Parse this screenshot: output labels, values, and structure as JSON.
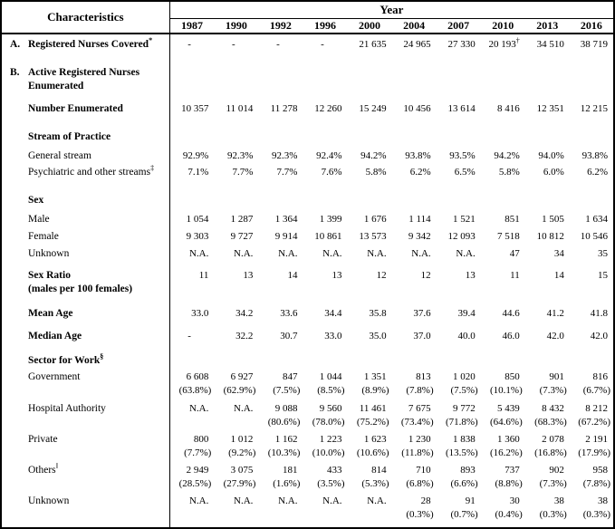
{
  "table": {
    "header": {
      "characteristics": "Characteristics",
      "year": "Year",
      "years": [
        "1987",
        "1990",
        "1992",
        "1996",
        "2000",
        "2004",
        "2007",
        "2010",
        "2013",
        "2016"
      ]
    },
    "na_label": "N.A.",
    "rows": [
      {
        "id": "registered-covered",
        "letter": "A.",
        "label": "Registered Nurses Covered",
        "sup": "*",
        "bold": true,
        "cells": [
          "-",
          "-",
          "-",
          "-",
          "21 635",
          "24 965",
          "27 330",
          {
            "v": "20 193",
            "sup": "†"
          },
          "34 510",
          "38 719"
        ]
      },
      {
        "id": "active-enumerated",
        "letter": "B.",
        "label": "Active Registered Nurses",
        "label2": "Enumerated",
        "bold": true,
        "cells": []
      },
      {
        "id": "number-enumerated",
        "label": "Number Enumerated",
        "bold": true,
        "cells": [
          "10 357",
          "11 014",
          "11 278",
          "12 260",
          "15 249",
          "10 456",
          "13 614",
          "8 416",
          "12 351",
          "12 215"
        ]
      },
      {
        "id": "stream-of-practice",
        "label": "Stream of Practice",
        "bold": true,
        "cells": []
      },
      {
        "id": "general-stream",
        "label": "General stream",
        "bold": false,
        "cells": [
          "92.9%",
          "92.3%",
          "92.3%",
          "92.4%",
          "94.2%",
          "93.8%",
          "93.5%",
          "94.2%",
          "94.0%",
          "93.8%"
        ]
      },
      {
        "id": "psychiatric-streams",
        "label": "Psychiatric and other streams",
        "sup": "‡",
        "bold": false,
        "cells": [
          "7.1%",
          "7.7%",
          "7.7%",
          "7.6%",
          "5.8%",
          "6.2%",
          "6.5%",
          "5.8%",
          "6.0%",
          "6.2%"
        ]
      },
      {
        "id": "sex",
        "label": "Sex",
        "bold": true,
        "cells": []
      },
      {
        "id": "male",
        "label": "Male",
        "bold": false,
        "cells": [
          "1 054",
          "1 287",
          "1 364",
          "1 399",
          "1 676",
          "1 114",
          "1 521",
          "851",
          "1 505",
          "1 634"
        ]
      },
      {
        "id": "female",
        "label": "Female",
        "bold": false,
        "cells": [
          "9 303",
          "9 727",
          "9 914",
          "10 861",
          "13 573",
          "9 342",
          "12 093",
          "7 518",
          "10 812",
          "10 546"
        ]
      },
      {
        "id": "unknown-sex",
        "label": "Unknown",
        "bold": false,
        "cells": [
          "N.A.",
          "N.A.",
          "N.A.",
          "N.A.",
          "N.A.",
          "N.A.",
          "N.A.",
          "47",
          "34",
          "35"
        ]
      },
      {
        "id": "sex-ratio",
        "label": "Sex Ratio",
        "label2": "(males per 100 females)",
        "bold": true,
        "cells": [
          "11",
          "13",
          "14",
          "13",
          "12",
          "12",
          "13",
          "11",
          "14",
          "15"
        ]
      },
      {
        "id": "mean-age",
        "label": "Mean Age",
        "bold": true,
        "cells": [
          "33.0",
          "34.2",
          "33.6",
          "34.4",
          "35.8",
          "37.6",
          "39.4",
          "44.6",
          "41.2",
          "41.8"
        ]
      },
      {
        "id": "median-age",
        "label": "Median Age",
        "bold": true,
        "cells": [
          "-",
          "32.2",
          "30.7",
          "33.0",
          "35.0",
          "37.0",
          "40.0",
          "46.0",
          "42.0",
          "42.0"
        ]
      },
      {
        "id": "sector-for-work",
        "label": "Sector for Work",
        "sup": "§",
        "bold": true,
        "cells": []
      },
      {
        "id": "government",
        "label": "Government",
        "bold": false,
        "cells": [
          {
            "v": "6 608",
            "pct": "(63.8%)"
          },
          {
            "v": "6 927",
            "pct": "(62.9%)"
          },
          {
            "v": "847",
            "pct": "(7.5%)"
          },
          {
            "v": "1 044",
            "pct": "(8.5%)"
          },
          {
            "v": "1 351",
            "pct": "(8.9%)"
          },
          {
            "v": "813",
            "pct": "(7.8%)"
          },
          {
            "v": "1 020",
            "pct": "(7.5%)"
          },
          {
            "v": "850",
            "pct": "(10.1%)"
          },
          {
            "v": "901",
            "pct": "(7.3%)"
          },
          {
            "v": "816",
            "pct": "(6.7%)"
          }
        ]
      },
      {
        "id": "hospital-authority",
        "label": "Hospital Authority",
        "bold": false,
        "cells": [
          "N.A.",
          "N.A.",
          {
            "v": "9 088",
            "pct": "(80.6%)"
          },
          {
            "v": "9 560",
            "pct": "(78.0%)"
          },
          {
            "v": "11 461",
            "pct": "(75.2%)"
          },
          {
            "v": "7 675",
            "pct": "(73.4%)"
          },
          {
            "v": "9 772",
            "pct": "(71.8%)"
          },
          {
            "v": "5 439",
            "pct": "(64.6%)"
          },
          {
            "v": "8 432",
            "pct": "(68.3%)"
          },
          {
            "v": "8 212",
            "pct": "(67.2%)"
          }
        ]
      },
      {
        "id": "private",
        "label": "Private",
        "bold": false,
        "cells": [
          {
            "v": "800",
            "pct": "(7.7%)"
          },
          {
            "v": "1 012",
            "pct": "(9.2%)"
          },
          {
            "v": "1 162",
            "pct": "(10.3%)"
          },
          {
            "v": "1 223",
            "pct": "(10.0%)"
          },
          {
            "v": "1 623",
            "pct": "(10.6%)"
          },
          {
            "v": "1 230",
            "pct": "(11.8%)"
          },
          {
            "v": "1 838",
            "pct": "(13.5%)"
          },
          {
            "v": "1 360",
            "pct": "(16.2%)"
          },
          {
            "v": "2 078",
            "pct": "(16.8%)"
          },
          {
            "v": "2 191",
            "pct": "(17.9%)"
          }
        ]
      },
      {
        "id": "others",
        "label": "Others",
        "sup": "‖",
        "bold": false,
        "cells": [
          {
            "v": "2 949",
            "pct": "(28.5%)"
          },
          {
            "v": "3 075",
            "pct": "(27.9%)"
          },
          {
            "v": "181",
            "pct": "(1.6%)"
          },
          {
            "v": "433",
            "pct": "(3.5%)"
          },
          {
            "v": "814",
            "pct": "(5.3%)"
          },
          {
            "v": "710",
            "pct": "(6.8%)"
          },
          {
            "v": "893",
            "pct": "(6.6%)"
          },
          {
            "v": "737",
            "pct": "(8.8%)"
          },
          {
            "v": "902",
            "pct": "(7.3%)"
          },
          {
            "v": "958",
            "pct": "(7.8%)"
          }
        ]
      },
      {
        "id": "unknown-sector",
        "label": "Unknown",
        "bold": false,
        "cells": [
          "N.A.",
          "N.A.",
          "N.A.",
          "N.A.",
          "N.A.",
          {
            "v": "28",
            "pct": "(0.3%)"
          },
          {
            "v": "91",
            "pct": "(0.7%)"
          },
          {
            "v": "30",
            "pct": "(0.4%)"
          },
          {
            "v": "38",
            "pct": "(0.3%)"
          },
          {
            "v": "38",
            "pct": "(0.3%)"
          }
        ]
      }
    ]
  }
}
